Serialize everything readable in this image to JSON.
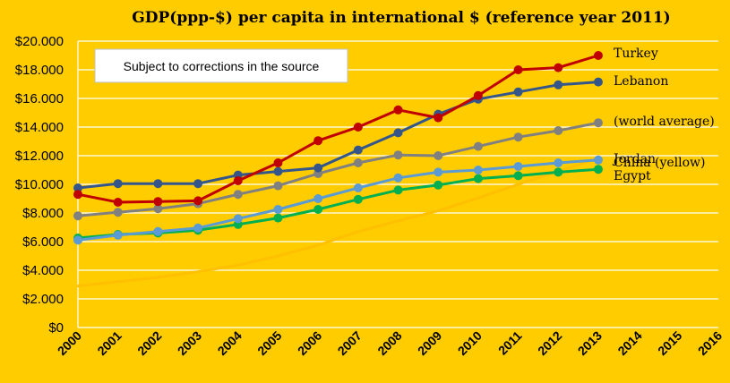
{
  "chart_data": {
    "type": "line",
    "title": "GDP(ppp-$) per capita in international $ (reference year 2011)",
    "annotation": "Subject to corrections in the source",
    "xlabel": "",
    "ylabel": "",
    "x": [
      2000,
      2001,
      2002,
      2003,
      2004,
      2005,
      2006,
      2007,
      2008,
      2009,
      2010,
      2011,
      2012,
      2013
    ],
    "x_ticks": [
      "2000",
      "2001",
      "2002",
      "2003",
      "2004",
      "2005",
      "2006",
      "2007",
      "2008",
      "2009",
      "2010",
      "2011",
      "2012",
      "2013",
      "2014",
      "2015",
      "2016"
    ],
    "xlim": [
      2000,
      2016
    ],
    "ylim": [
      0,
      20000
    ],
    "y_ticks": [
      {
        "value": 0,
        "label": "$0"
      },
      {
        "value": 2000,
        "label": "$2.000"
      },
      {
        "value": 4000,
        "label": "$4.000"
      },
      {
        "value": 6000,
        "label": "$6.000"
      },
      {
        "value": 8000,
        "label": "$8.000"
      },
      {
        "value": 10000,
        "label": "$10.000"
      },
      {
        "value": 12000,
        "label": "$12.000"
      },
      {
        "value": 14000,
        "label": "$14.000"
      },
      {
        "value": 16000,
        "label": "$16.000"
      },
      {
        "value": 18000,
        "label": "$18.000"
      },
      {
        "value": 20000,
        "label": "$20.000"
      }
    ],
    "grid": true,
    "legend": "labels at line ends (right)",
    "series": [
      {
        "name": "China (yellow)",
        "color": "#FFC000",
        "markers": false,
        "values": [
          2900,
          3200,
          3500,
          3900,
          4350,
          5000,
          5750,
          6700,
          7450,
          8150,
          9050,
          10000,
          10900,
          11850
        ]
      },
      {
        "name": "Egypt",
        "color": "#00B050",
        "markers": true,
        "values": [
          6250,
          6500,
          6600,
          6800,
          7200,
          7650,
          8250,
          8950,
          9600,
          9950,
          10400,
          10600,
          10850,
          11050
        ]
      },
      {
        "name": "Jordan",
        "color": "#5B9BD5",
        "markers": true,
        "values": [
          6100,
          6450,
          6700,
          6950,
          7600,
          8250,
          9000,
          9750,
          10450,
          10850,
          11000,
          11250,
          11500,
          11700
        ]
      },
      {
        "name": "(world average)",
        "color": "#808080",
        "markers": true,
        "values": [
          7800,
          8050,
          8300,
          8650,
          9300,
          9900,
          10750,
          11500,
          12050,
          12000,
          12650,
          13300,
          13750,
          14300
        ]
      },
      {
        "name": "Lebanon",
        "color": "#34568B",
        "markers": true,
        "values": [
          9750,
          10050,
          10050,
          10050,
          10650,
          10900,
          11150,
          12400,
          13600,
          14900,
          15950,
          16450,
          16950,
          17150
        ]
      },
      {
        "name": "Turkey",
        "color": "#C00000",
        "markers": true,
        "values": [
          9300,
          8750,
          8800,
          8850,
          10250,
          11500,
          13050,
          14000,
          15200,
          14650,
          16200,
          18000,
          18150,
          19000
        ]
      }
    ]
  }
}
